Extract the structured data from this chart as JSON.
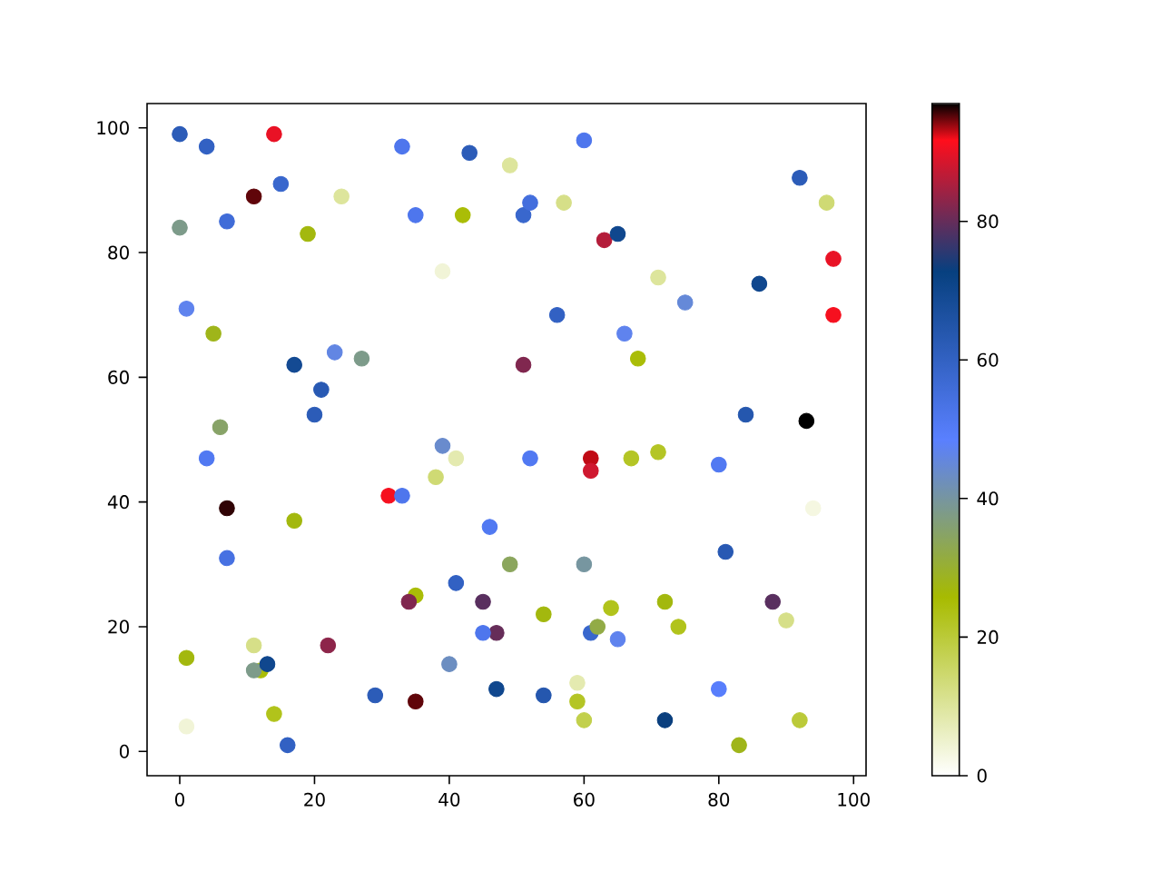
{
  "chart_data": {
    "type": "scatter",
    "marker": "circle",
    "x": [
      0,
      4,
      14,
      33,
      43,
      49,
      60,
      11,
      15,
      24,
      7,
      19,
      0,
      35,
      42,
      39,
      51,
      52,
      57,
      63,
      65,
      92,
      96,
      97,
      97,
      71,
      75,
      86,
      66,
      68,
      56,
      51,
      1,
      5,
      17,
      23,
      27,
      21,
      20,
      6,
      84,
      93,
      4,
      7,
      17,
      7,
      39,
      41,
      38,
      31,
      33,
      52,
      61,
      61,
      67,
      71,
      80,
      94,
      46,
      41,
      49,
      60,
      35,
      34,
      45,
      47,
      45,
      22,
      54,
      64,
      74,
      72,
      81,
      88,
      90,
      61,
      62,
      65,
      1,
      11,
      12,
      11,
      13,
      14,
      16,
      1,
      29,
      35,
      40,
      47,
      54,
      59,
      59,
      60,
      72,
      80,
      83,
      92
    ],
    "values": [
      99,
      97,
      99,
      97,
      96,
      94,
      98,
      89,
      91,
      89,
      85,
      83,
      84,
      86,
      86,
      77,
      86,
      88,
      88,
      82,
      83,
      92,
      88,
      79,
      70,
      76,
      72,
      75,
      67,
      63,
      70,
      62,
      71,
      67,
      62,
      64,
      63,
      58,
      54,
      52,
      54,
      53,
      47,
      39,
      37,
      31,
      49,
      47,
      44,
      41,
      41,
      47,
      47,
      45,
      47,
      48,
      46,
      39,
      36,
      27,
      30,
      30,
      25,
      24,
      24,
      19,
      19,
      17,
      22,
      23,
      20,
      24,
      32,
      24,
      21,
      19,
      20,
      18,
      15,
      17,
      13,
      13,
      14,
      6,
      1,
      4,
      9,
      8,
      14,
      10,
      9,
      11,
      8,
      5,
      5,
      10,
      1,
      5
    ],
    "cvalues": [
      62,
      60,
      90,
      52,
      62,
      10,
      52,
      95,
      58,
      10,
      56,
      27,
      38,
      52,
      25,
      4,
      58,
      55,
      12,
      86,
      70,
      62,
      14,
      90,
      91,
      10,
      45,
      70,
      47,
      25,
      60,
      82,
      47,
      28,
      69,
      46,
      38,
      63,
      62,
      35,
      64,
      97,
      51,
      96,
      27,
      54,
      44,
      8,
      14,
      91,
      52,
      51,
      93,
      88,
      22,
      22,
      51,
      3,
      51,
      60,
      34,
      40,
      25,
      82,
      79,
      80,
      52,
      83,
      27,
      23,
      23,
      27,
      63,
      79,
      12,
      58,
      32,
      47,
      27,
      12,
      25,
      38,
      70,
      23,
      60,
      4,
      62,
      95,
      43,
      70,
      64,
      8,
      22,
      18,
      73,
      49,
      28,
      20
    ],
    "xlim": [
      -4.85,
      101.85
    ],
    "ylim": [
      -3.9,
      103.9
    ],
    "xticks": [
      0,
      20,
      40,
      60,
      80,
      100
    ],
    "yticks": [
      0,
      20,
      40,
      60,
      80,
      100
    ],
    "clim": [
      0,
      97
    ],
    "cticks": [
      0,
      20,
      40,
      60,
      80
    ]
  }
}
